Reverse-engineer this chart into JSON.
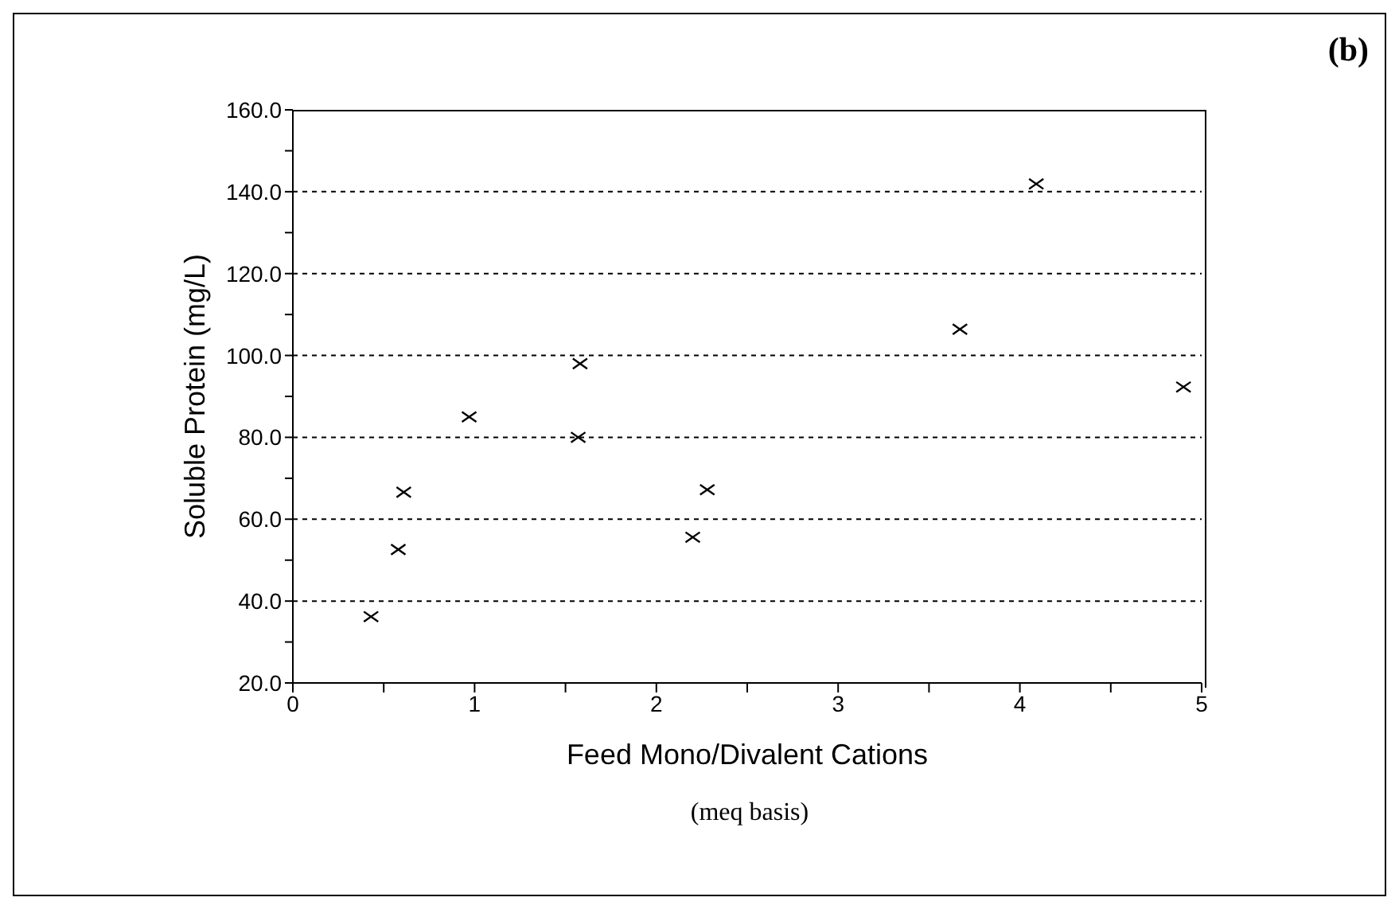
{
  "chart_data": {
    "type": "scatter",
    "title": "(b)",
    "xlabel": "Feed Mono/Divalent Cations",
    "ylabel": "Soluble Protein (mg/L)",
    "annotations": [
      "(meq basis)"
    ],
    "series": [
      {
        "color": "#000000",
        "x": [
          0.43,
          0.58,
          0.61,
          0.97,
          1.57,
          1.58,
          2.2,
          2.28,
          3.67,
          4.09,
          4.9
        ],
        "values": [
          36.2,
          52.6,
          66.6,
          85,
          80,
          98,
          55.6,
          67.2,
          106.4,
          141.9,
          92.3
        ]
      }
    ],
    "xlim": [
      0,
      5
    ],
    "ylim": [
      20,
      160
    ],
    "xticks": [
      0,
      {
        "value": 0.5,
        "label": null
      },
      1,
      {
        "value": 1.5,
        "label": null
      },
      2,
      {
        "value": 2.5,
        "label": null
      },
      3,
      {
        "value": 3.5,
        "label": null
      },
      4,
      {
        "value": 4.5,
        "label": null
      },
      5
    ],
    "yticks": [
      {
        "value": 20,
        "label": "20.0"
      },
      {
        "value": 30,
        "label": null
      },
      {
        "value": 40,
        "label": "40.0"
      },
      {
        "value": 50,
        "label": null
      },
      {
        "value": 60,
        "label": "60.0"
      },
      {
        "value": 70,
        "label": null
      },
      {
        "value": 80,
        "label": "80.0"
      },
      {
        "value": 90,
        "label": null
      },
      {
        "value": 100,
        "label": "100.0"
      },
      {
        "value": 110,
        "label": null
      },
      {
        "value": 120,
        "label": "120.0"
      },
      {
        "value": 130,
        "label": null
      },
      {
        "value": 140,
        "label": "140.0"
      },
      {
        "value": 150,
        "label": null
      },
      {
        "value": 160,
        "label": "160.0"
      }
    ],
    "grid": "y",
    "marker": "cross"
  }
}
